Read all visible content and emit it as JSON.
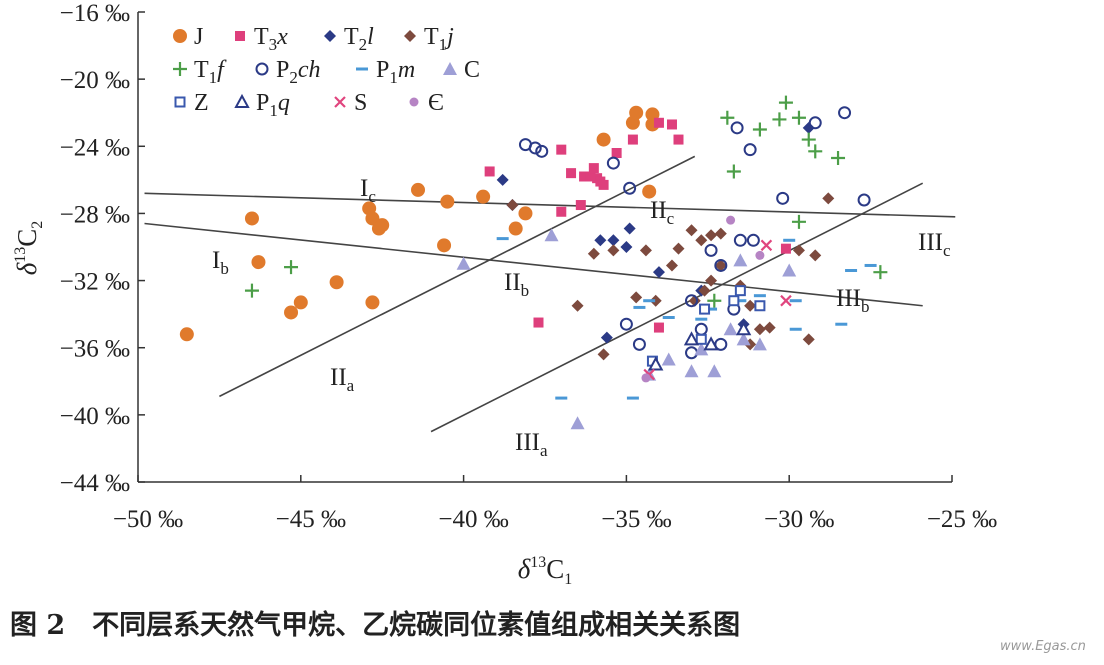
{
  "chart_data": {
    "type": "scatter",
    "x_label": {
      "symbol": "δ",
      "mass": "13",
      "element": "C",
      "index": "1"
    },
    "y_label": {
      "symbol": "δ",
      "mass": "13",
      "element": "C",
      "index": "2"
    },
    "xlim": [
      -50,
      -25
    ],
    "ylim": [
      -44,
      -16
    ],
    "xticks": [
      {
        "value": -50,
        "label": "−50 ‰"
      },
      {
        "value": -45,
        "label": "−45 ‰"
      },
      {
        "value": -40,
        "label": "−40 ‰"
      },
      {
        "value": -35,
        "label": "−35 ‰"
      },
      {
        "value": -30,
        "label": "−30 ‰"
      },
      {
        "value": -25,
        "label": "−25 ‰"
      }
    ],
    "yticks": [
      {
        "value": -16,
        "label": "−16 ‰"
      },
      {
        "value": -20,
        "label": "−20 ‰"
      },
      {
        "value": -24,
        "label": "−24 ‰"
      },
      {
        "value": -28,
        "label": "−28 ‰"
      },
      {
        "value": -32,
        "label": "−32 ‰"
      },
      {
        "value": -36,
        "label": "−36 ‰"
      },
      {
        "value": -40,
        "label": "−40 ‰"
      },
      {
        "value": -44,
        "label": "−44 ‰"
      }
    ],
    "grid": false,
    "legend": "top-left",
    "series": [
      {
        "name": "J",
        "marker": "circle",
        "color": "#e07a2c",
        "x": [
          -48.5,
          -46.5,
          -46.3,
          -43.9,
          -45.0,
          -45.3,
          -42.8,
          -42.8,
          -42.9,
          -42.5,
          -42.6,
          -41.4,
          -40.5,
          -40.6,
          -39.4,
          -38.4,
          -38.1,
          -35.7,
          -34.8,
          -34.7,
          -34.2,
          -34.2,
          -34.3
        ],
        "y": [
          -35.2,
          -28.3,
          -30.9,
          -32.1,
          -33.3,
          -33.9,
          -33.3,
          -28.3,
          -27.7,
          -28.7,
          -28.9,
          -26.6,
          -27.3,
          -29.9,
          -27.0,
          -28.9,
          -28.0,
          -23.6,
          -22.6,
          -22.0,
          -22.1,
          -22.7,
          -26.7
        ]
      },
      {
        "name": "T3x",
        "marker": "square",
        "color": "#de3f7c",
        "x": [
          -39.2,
          -37.7,
          -37.0,
          -36.7,
          -36.3,
          -36.1,
          -35.9,
          -35.8,
          -35.7,
          -36.0,
          -36.4,
          -37.0,
          -35.3,
          -34.8,
          -34.0,
          -33.6,
          -33.4,
          -34.0,
          -30.1
        ],
        "y": [
          -25.5,
          -34.5,
          -24.2,
          -25.6,
          -25.8,
          -25.8,
          -25.9,
          -26.1,
          -26.3,
          -25.3,
          -27.5,
          -27.9,
          -24.4,
          -23.6,
          -22.6,
          -22.7,
          -23.6,
          -34.8,
          -30.1
        ]
      },
      {
        "name": "T2l",
        "marker": "diamond",
        "color": "#2b3a86",
        "x": [
          -38.8,
          -38.5,
          -35.8,
          -35.4,
          -35.0,
          -34.9,
          -35.6,
          -34.0,
          -32.7,
          -29.4,
          -31.4
        ],
        "y": [
          -26.0,
          -27.5,
          -29.6,
          -29.6,
          -30.0,
          -28.9,
          -35.4,
          -31.5,
          -32.6,
          -22.9,
          -34.6
        ]
      },
      {
        "name": "T1j",
        "marker": "diamond",
        "color": "#7d4a3e",
        "x": [
          -38.5,
          -36.0,
          -35.7,
          -36.5,
          -35.4,
          -34.7,
          -34.4,
          -34.1,
          -33.6,
          -33.4,
          -33.0,
          -32.7,
          -32.4,
          -32.1,
          -32.9,
          -32.6,
          -32.4,
          -32.1,
          -31.5,
          -30.9,
          -30.6,
          -29.7,
          -29.2,
          -28.8,
          -29.4,
          -31.2,
          -31.2
        ],
        "y": [
          -27.5,
          -30.4,
          -36.4,
          -33.5,
          -30.2,
          -33.0,
          -30.2,
          -33.2,
          -31.1,
          -30.1,
          -29.0,
          -29.6,
          -29.3,
          -29.2,
          -33.2,
          -32.6,
          -32.0,
          -31.1,
          -32.3,
          -34.9,
          -34.8,
          -30.2,
          -30.5,
          -27.1,
          -35.5,
          -35.8,
          -33.5
        ]
      },
      {
        "name": "T1f",
        "marker": "plus",
        "color": "#4c9e48",
        "x": [
          -46.5,
          -45.3,
          -31.9,
          -31.7,
          -30.9,
          -30.3,
          -30.1,
          -29.7,
          -29.4,
          -29.2,
          -28.5,
          -27.2,
          -29.7,
          -32.3
        ],
        "y": [
          -32.6,
          -31.2,
          -22.3,
          -25.5,
          -23.0,
          -22.4,
          -21.4,
          -22.3,
          -23.6,
          -24.3,
          -24.7,
          -31.5,
          -28.5,
          -33.2
        ]
      },
      {
        "name": "P2ch",
        "marker": "open-circle",
        "color": "#2b3a86",
        "x": [
          -38.1,
          -37.8,
          -37.6,
          -35.4,
          -34.9,
          -31.6,
          -31.2,
          -30.2,
          -29.2,
          -28.3,
          -27.7,
          -31.5,
          -31.1,
          -32.1,
          -32.4,
          -35.0,
          -34.6,
          -33.0,
          -32.7,
          -32.1,
          -31.7,
          -33.0
        ],
        "y": [
          -23.9,
          -24.1,
          -24.3,
          -25.0,
          -26.5,
          -22.9,
          -24.2,
          -27.1,
          -22.6,
          -22.0,
          -27.2,
          -29.6,
          -29.6,
          -31.1,
          -30.2,
          -34.6,
          -35.8,
          -33.2,
          -34.9,
          -35.8,
          -33.7,
          -36.3
        ]
      },
      {
        "name": "P1m",
        "marker": "dash",
        "color": "#4a98d6",
        "x": [
          -38.8,
          -37.0,
          -34.8,
          -34.6,
          -34.3,
          -33.7,
          -32.7,
          -32.4,
          -31.5,
          -30.9,
          -30.0,
          -29.8,
          -29.8,
          -28.4,
          -28.1,
          -27.5
        ],
        "y": [
          -29.5,
          -39.0,
          -39.0,
          -33.6,
          -33.2,
          -34.2,
          -34.3,
          -33.7,
          -33.2,
          -32.9,
          -29.6,
          -33.2,
          -34.9,
          -34.6,
          -31.4,
          -31.1
        ]
      },
      {
        "name": "C",
        "marker": "triangle",
        "color": "#9e9fd6",
        "x": [
          -40.0,
          -37.3,
          -36.5,
          -34.3,
          -33.7,
          -33.0,
          -32.3,
          -32.7,
          -31.8,
          -31.4,
          -30.9,
          -30.0,
          -31.5
        ],
        "y": [
          -31.0,
          -29.3,
          -40.5,
          -37.6,
          -36.7,
          -37.4,
          -37.4,
          -36.1,
          -34.9,
          -35.5,
          -35.8,
          -31.4,
          -30.8
        ]
      },
      {
        "name": "Z",
        "marker": "open-square",
        "color": "#3a58ae",
        "x": [
          -34.2,
          -32.7,
          -31.7,
          -31.5,
          -30.9,
          -32.6
        ],
        "y": [
          -36.8,
          -35.5,
          -33.2,
          -32.6,
          -33.5,
          -33.7
        ]
      },
      {
        "name": "P1q",
        "marker": "open-triangle",
        "color": "#2b3a86",
        "x": [
          -34.1,
          -33.0,
          -32.4,
          -31.4
        ],
        "y": [
          -37.0,
          -35.5,
          -35.8,
          -34.9
        ]
      },
      {
        "name": "S",
        "marker": "cross",
        "color": "#e0457e",
        "x": [
          -34.3,
          -30.7,
          -30.1
        ],
        "y": [
          -37.6,
          -29.9,
          -33.2
        ]
      },
      {
        "name": "Є",
        "marker": "dot",
        "color": "#b684c4",
        "x": [
          -31.8,
          -30.9,
          -34.4
        ],
        "y": [
          -28.4,
          -30.5,
          -37.8
        ]
      }
    ],
    "reference_lines": [
      {
        "x": [
          -49.8,
          -24.9
        ],
        "y": [
          -26.8,
          -28.2
        ]
      },
      {
        "x": [
          -49.8,
          -25.9
        ],
        "y": [
          -28.6,
          -33.5
        ]
      },
      {
        "x": [
          -47.5,
          -32.9
        ],
        "y": [
          -38.9,
          -24.6
        ]
      },
      {
        "x": [
          -41.0,
          -25.9
        ],
        "y": [
          -41.0,
          -26.2
        ]
      }
    ],
    "annotations": [
      "Ic",
      "Ib",
      "IIa",
      "IIb",
      "IIc",
      "IIIa",
      "IIIb",
      "IIIc"
    ]
  },
  "caption": "图 2　不同层系天然气甲烷、乙烷碳同位素值组成相关关系图",
  "watermark": "www.Egas.cn"
}
